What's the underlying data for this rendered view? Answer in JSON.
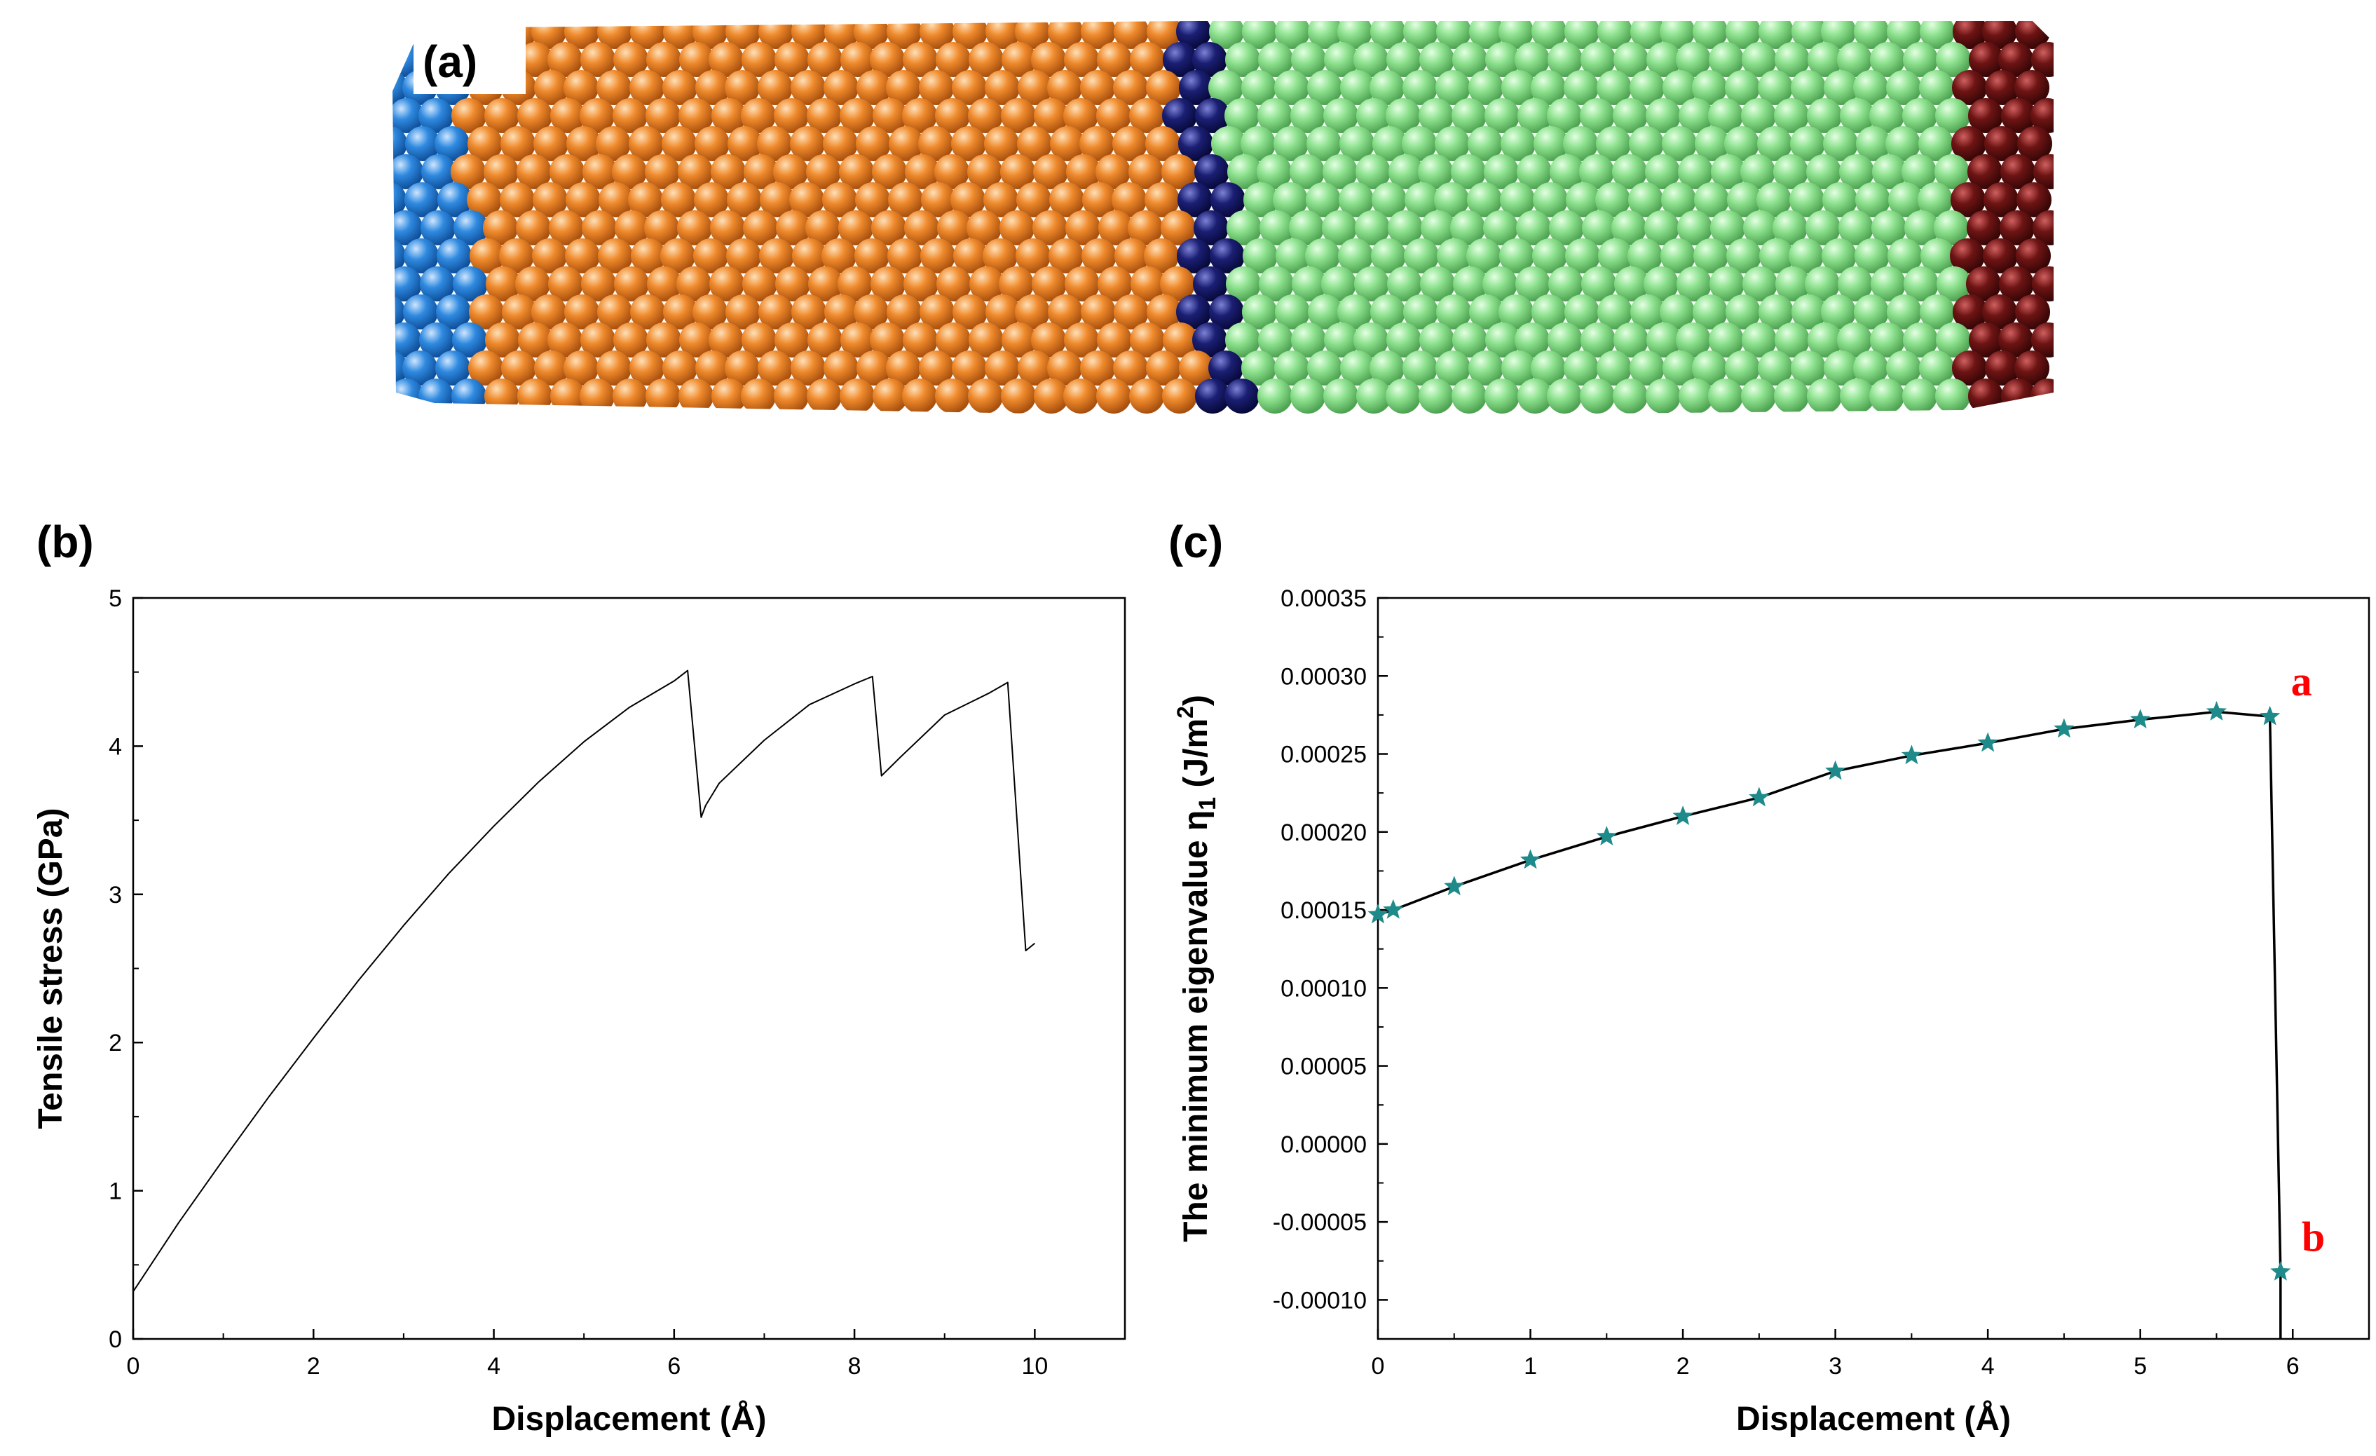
{
  "figure": {
    "panel_a_label": "(a)",
    "panel_b_label": "(b)",
    "panel_c_label": "(c)",
    "atom_colors": {
      "left_grip": "#2f8ae0",
      "left_block": "#ef8a2c",
      "interface": "#1b1f73",
      "right_block": "#8ee28f",
      "right_grip": "#6e1414"
    }
  },
  "chart_data": [
    {
      "panel": "b",
      "type": "line",
      "title": "",
      "xlabel": "Displacement (Å)",
      "ylabel": "Tensile stress (GPa)",
      "xlim": [
        0,
        11
      ],
      "ylim": [
        0,
        5
      ],
      "xticks": [
        0,
        2,
        4,
        6,
        8,
        10
      ],
      "yticks": [
        0,
        1,
        2,
        3,
        4,
        5
      ],
      "xtick_labels": [
        "0",
        "2",
        "4",
        "6",
        "8",
        "10"
      ],
      "ytick_labels": [
        "0",
        "1",
        "2",
        "3",
        "4",
        "5"
      ],
      "line_color": "#000000",
      "series": [
        {
          "name": "Tensile stress",
          "x": [
            0,
            0.5,
            1,
            1.5,
            2,
            2.5,
            3,
            3.5,
            4,
            4.5,
            5,
            5.5,
            6,
            6.15,
            6.3,
            6.35,
            6.5,
            7,
            7.5,
            8,
            8.2,
            8.3,
            8.5,
            9,
            9.3,
            9.5,
            9.7,
            9.9,
            10
          ],
          "y": [
            0.32,
            0.78,
            1.21,
            1.63,
            2.03,
            2.42,
            2.79,
            3.14,
            3.46,
            3.76,
            4.03,
            4.26,
            4.44,
            4.51,
            3.52,
            3.6,
            3.75,
            4.04,
            4.28,
            4.42,
            4.47,
            3.8,
            3.92,
            4.21,
            4.3,
            4.36,
            4.43,
            2.62,
            2.67
          ]
        }
      ]
    },
    {
      "panel": "c",
      "type": "line",
      "title": "",
      "xlabel": "Displacement (Å)",
      "ylabel": "The minimum eigenvalue η",
      "ylabel_subscript": "1",
      "ylabel_units_open": " (J/m",
      "ylabel_units_sup": "2",
      "ylabel_units_close": ")",
      "xlim": [
        0,
        6.5
      ],
      "ylim": [
        -0.000125,
        0.00035
      ],
      "xticks": [
        0,
        1,
        2,
        3,
        4,
        5,
        6
      ],
      "yticks": [
        -0.0001,
        -5e-05,
        0,
        5e-05,
        0.0001,
        0.00015,
        0.0002,
        0.00025,
        0.0003,
        0.00035
      ],
      "xtick_labels": [
        "0",
        "1",
        "2",
        "3",
        "4",
        "5",
        "6"
      ],
      "ytick_labels": [
        "-0.00010",
        "-0.00005",
        "0.00000",
        "0.00005",
        "0.00010",
        "0.00015",
        "0.00020",
        "0.00025",
        "0.00030",
        "0.00035"
      ],
      "line_color": "#000000",
      "marker": "star",
      "marker_color": "#1f8a8a",
      "series": [
        {
          "name": "Minimum eigenvalue",
          "x": [
            0,
            0.1,
            0.5,
            1,
            1.5,
            2,
            2.5,
            3,
            3.5,
            4,
            4.5,
            5,
            5.5,
            5.85,
            5.92,
            5.92
          ],
          "y": [
            0.000147,
            0.00015,
            0.000165,
            0.000182,
            0.000197,
            0.00021,
            0.000222,
            0.000239,
            0.000249,
            0.000257,
            0.000266,
            0.000272,
            0.000277,
            0.000274,
            -8.2e-05,
            -0.000125
          ],
          "marker_count": 15
        }
      ],
      "annotations": [
        {
          "text": "a",
          "x": 5.85,
          "y": 0.000274,
          "color": "#ff0000"
        },
        {
          "text": "b",
          "x": 5.92,
          "y": -8.2e-05,
          "color": "#ff0000"
        }
      ]
    }
  ]
}
